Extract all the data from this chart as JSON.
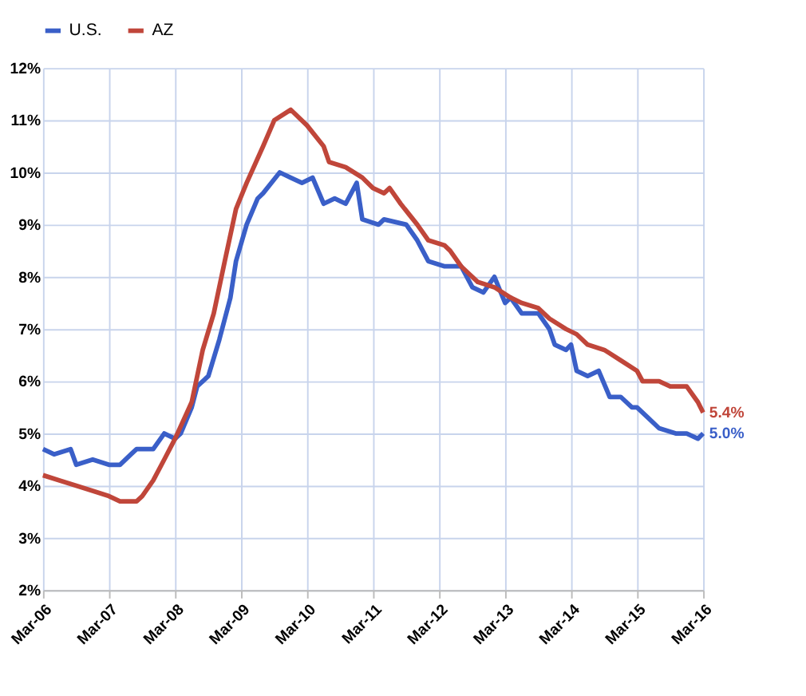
{
  "chart_data": {
    "type": "line",
    "legend": "top",
    "grid": true,
    "marker": "none",
    "line_style": "solid",
    "xlim": [
      "2006-03",
      "2016-03"
    ],
    "xticks": [
      {
        "value": "2006-03",
        "label": "Mar-06"
      },
      {
        "value": "2007-03",
        "label": "Mar-07"
      },
      {
        "value": "2008-03",
        "label": "Mar-08"
      },
      {
        "value": "2009-03",
        "label": "Mar-09"
      },
      {
        "value": "2010-03",
        "label": "Mar-10"
      },
      {
        "value": "2011-03",
        "label": "Mar-11"
      },
      {
        "value": "2012-03",
        "label": "Mar-12"
      },
      {
        "value": "2013-03",
        "label": "Mar-13"
      },
      {
        "value": "2014-03",
        "label": "Mar-14"
      },
      {
        "value": "2015-03",
        "label": "Mar-15"
      },
      {
        "value": "2016-03",
        "label": "Mar-16"
      }
    ],
    "ylim": [
      2,
      12
    ],
    "yticks": [
      {
        "value": 2,
        "label": "2%"
      },
      {
        "value": 3,
        "label": "3%"
      },
      {
        "value": 4,
        "label": "4%"
      },
      {
        "value": 5,
        "label": "5%"
      },
      {
        "value": 6,
        "label": "6%"
      },
      {
        "value": 7,
        "label": "7%"
      },
      {
        "value": 8,
        "label": "8%"
      },
      {
        "value": 9,
        "label": "9%"
      },
      {
        "value": 10,
        "label": "10%"
      },
      {
        "value": 11,
        "label": "11%"
      },
      {
        "value": 12,
        "label": "12%"
      }
    ],
    "series": [
      {
        "name": "U.S.",
        "color": "#3a5fc8",
        "x": [
          "2006-03",
          "2006-05",
          "2006-08",
          "2006-09",
          "2006-12",
          "2007-03",
          "2007-05",
          "2007-07",
          "2007-08",
          "2007-11",
          "2008-01",
          "2008-03",
          "2008-04",
          "2008-06",
          "2008-07",
          "2008-09",
          "2008-11",
          "2009-01",
          "2009-02",
          "2009-04",
          "2009-06",
          "2009-07",
          "2009-10",
          "2009-12",
          "2010-02",
          "2010-04",
          "2010-06",
          "2010-08",
          "2010-10",
          "2010-12",
          "2011-01",
          "2011-04",
          "2011-05",
          "2011-09",
          "2011-11",
          "2012-01",
          "2012-04",
          "2012-07",
          "2012-09",
          "2012-11",
          "2013-01",
          "2013-03",
          "2013-04",
          "2013-06",
          "2013-09",
          "2013-11",
          "2013-12",
          "2014-02",
          "2014-03",
          "2014-04",
          "2014-06",
          "2014-08",
          "2014-10",
          "2014-12",
          "2015-02",
          "2015-03",
          "2015-05",
          "2015-07",
          "2015-10",
          "2015-12",
          "2016-02",
          "2016-03"
        ],
        "values": [
          4.7,
          4.6,
          4.7,
          4.4,
          4.5,
          4.4,
          4.4,
          4.6,
          4.7,
          4.7,
          5.0,
          4.9,
          5.0,
          5.5,
          5.9,
          6.1,
          6.8,
          7.6,
          8.3,
          9.0,
          9.5,
          9.6,
          10.0,
          9.9,
          9.8,
          9.9,
          9.4,
          9.5,
          9.4,
          9.8,
          9.1,
          9.0,
          9.1,
          9.0,
          8.7,
          8.3,
          8.2,
          8.2,
          7.8,
          7.7,
          8.0,
          7.5,
          7.6,
          7.3,
          7.3,
          7.0,
          6.7,
          6.6,
          6.7,
          6.2,
          6.1,
          6.2,
          5.7,
          5.7,
          5.5,
          5.5,
          5.3,
          5.1,
          5.0,
          5.0,
          4.9,
          5.0
        ]
      },
      {
        "name": "AZ",
        "color": "#c0463a",
        "x": [
          "2006-03",
          "2006-06",
          "2006-09",
          "2006-12",
          "2007-03",
          "2007-05",
          "2007-08",
          "2007-09",
          "2007-11",
          "2008-01",
          "2008-03",
          "2008-06",
          "2008-08",
          "2008-10",
          "2008-12",
          "2009-02",
          "2009-04",
          "2009-07",
          "2009-09",
          "2009-12",
          "2010-03",
          "2010-06",
          "2010-07",
          "2010-10",
          "2011-01",
          "2011-03",
          "2011-05",
          "2011-06",
          "2011-08",
          "2011-11",
          "2012-01",
          "2012-04",
          "2012-05",
          "2012-07",
          "2012-10",
          "2013-01",
          "2013-04",
          "2013-06",
          "2013-09",
          "2013-11",
          "2014-02",
          "2014-04",
          "2014-06",
          "2014-09",
          "2014-12",
          "2015-03",
          "2015-04",
          "2015-07",
          "2015-09",
          "2015-12",
          "2016-02",
          "2016-03"
        ],
        "values": [
          4.2,
          4.1,
          4.0,
          3.9,
          3.8,
          3.7,
          3.7,
          3.8,
          4.1,
          4.5,
          4.9,
          5.6,
          6.6,
          7.3,
          8.3,
          9.3,
          9.8,
          10.5,
          11.0,
          11.2,
          10.9,
          10.5,
          10.2,
          10.1,
          9.9,
          9.7,
          9.6,
          9.7,
          9.4,
          9.0,
          8.7,
          8.6,
          8.5,
          8.2,
          7.9,
          7.8,
          7.6,
          7.5,
          7.4,
          7.2,
          7.0,
          6.9,
          6.7,
          6.6,
          6.4,
          6.2,
          6.0,
          6.0,
          5.9,
          5.9,
          5.6,
          5.4
        ]
      }
    ],
    "annotations": [
      {
        "text": "5.4%",
        "x": "2016-03",
        "y": 5.4
      },
      {
        "text": "5.0%",
        "x": "2016-03",
        "y": 5.0
      }
    ]
  }
}
